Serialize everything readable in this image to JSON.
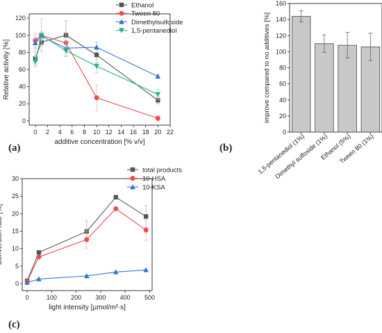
{
  "figure": {
    "panel_labels": [
      "(a)",
      "(b)",
      "(c)"
    ]
  },
  "chart_data": [
    {
      "panel": "(a)",
      "type": "line",
      "xlabel": "additive concentration [% v/v]",
      "ylabel": "Relative activity [%]",
      "xlim": [
        -1,
        22
      ],
      "ylim": [
        -5,
        125
      ],
      "xticks": [
        0,
        2,
        4,
        6,
        8,
        10,
        12,
        14,
        16,
        18,
        20,
        22
      ],
      "yticks": [
        0,
        20,
        40,
        60,
        80,
        100,
        120
      ],
      "grid": false,
      "legend_position": "top-right",
      "series": [
        {
          "name": "Ethanol",
          "color": "#555555",
          "marker": "square",
          "x": [
            0,
            1,
            5,
            10,
            20
          ],
          "y": [
            73,
            92,
            100,
            77,
            24
          ],
          "err": [
            8,
            4,
            17,
            9,
            4
          ]
        },
        {
          "name": "Tween 80",
          "color": "#ee4b4b",
          "marker": "circle",
          "x": [
            0,
            1,
            5,
            10,
            20
          ],
          "y": [
            94,
            100,
            91,
            27,
            3
          ],
          "err": [
            8,
            19,
            12,
            15,
            3
          ]
        },
        {
          "name": "Dimethylsulfoxide",
          "color": "#2e75d6",
          "marker": "triangle-up",
          "x": [
            0,
            1,
            5,
            10,
            20
          ],
          "y": [
            91,
            99,
            85,
            86,
            52
          ],
          "err": [
            7,
            5,
            9,
            6,
            2
          ]
        },
        {
          "name": "1,5-pentanediol",
          "color": "#1db388",
          "marker": "triangle-down",
          "x": [
            0,
            1,
            5,
            10,
            20
          ],
          "y": [
            69,
            100,
            82,
            64,
            31
          ],
          "err": [
            6,
            3,
            7,
            8,
            6
          ]
        }
      ]
    },
    {
      "panel": "(b)",
      "type": "bar",
      "ylabel": "improve compared to no additives [%]",
      "ylim": [
        0,
        160
      ],
      "yticks": [
        0,
        20,
        40,
        60,
        80,
        100,
        120,
        140,
        160
      ],
      "categories": [
        "1,5-pentanediol (1%)",
        "Dimethyl sulfoxide (1%)",
        "Ethanol (5%)",
        "Tween 80 (1%)"
      ],
      "values": [
        144,
        110,
        108,
        106
      ],
      "errors": [
        7,
        11,
        16,
        17
      ],
      "bar_color": "#c8c8c8"
    },
    {
      "panel": "(c)",
      "type": "line",
      "xlabel": "light intensity [µmol/m²·s]",
      "ylabel": "Conversion rate [%]",
      "xlim": [
        -20,
        510
      ],
      "ylim": [
        -2,
        30
      ],
      "xticks": [
        0,
        100,
        200,
        300,
        400,
        500
      ],
      "yticks": [
        0,
        5,
        10,
        15,
        20,
        25,
        30
      ],
      "grid": false,
      "legend_position": "top-right",
      "series": [
        {
          "name": "total products",
          "color": "#555555",
          "marker": "square",
          "x": [
            0,
            48,
            243,
            362,
            485
          ],
          "y": [
            0.8,
            8.9,
            14.9,
            24.7,
            19.2
          ],
          "err": [
            0.2,
            0.3,
            3.0,
            0.3,
            3.2
          ]
        },
        {
          "name": "10-HSA",
          "color": "#ee4b4b",
          "marker": "circle",
          "x": [
            0,
            48,
            243,
            362,
            485
          ],
          "y": [
            0.6,
            7.6,
            12.6,
            21.4,
            15.3
          ],
          "err": [
            0.2,
            0.3,
            2.5,
            0.3,
            3.0
          ]
        },
        {
          "name": "10-KSA",
          "color": "#2e75d6",
          "marker": "triangle-up",
          "x": [
            0,
            48,
            243,
            362,
            485
          ],
          "y": [
            0.3,
            1.3,
            2.2,
            3.3,
            3.9
          ],
          "err": [
            0.1,
            0.1,
            0.2,
            0.2,
            0.2
          ]
        }
      ]
    }
  ]
}
